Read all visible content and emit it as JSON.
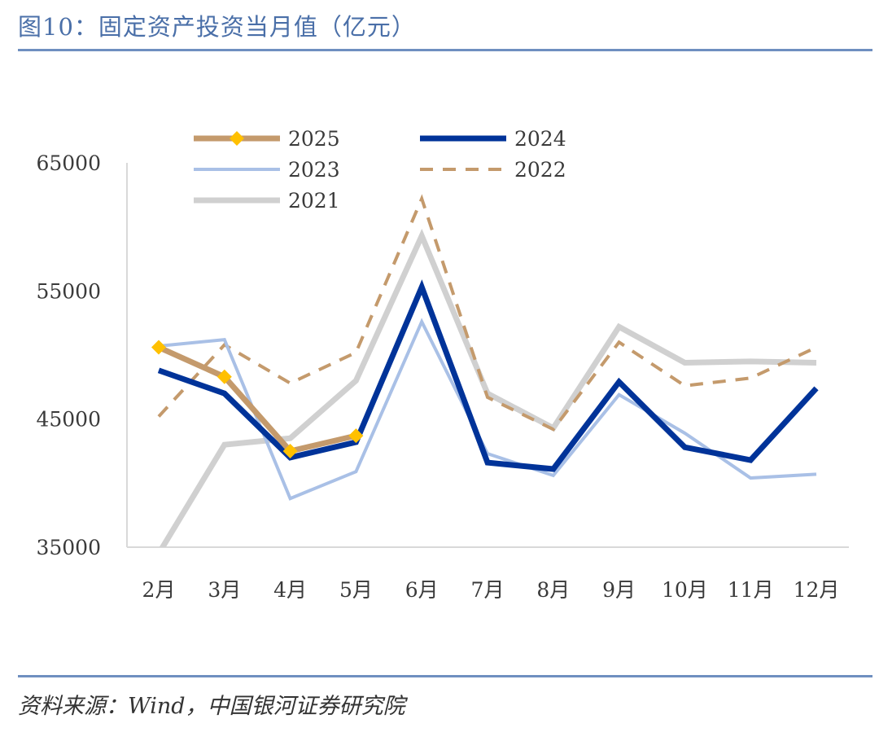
{
  "header": {
    "title": "图10：固定资产投资当月值（亿元）"
  },
  "footer": {
    "source": "资料来源：Wind，中国银河证券研究院"
  },
  "chart_data": {
    "type": "line",
    "title": "图10：固定资产投资当月值（亿元）",
    "xlabel": "",
    "ylabel": "",
    "categories": [
      "2月",
      "3月",
      "4月",
      "5月",
      "6月",
      "7月",
      "8月",
      "9月",
      "10月",
      "11月",
      "12月"
    ],
    "ylim": [
      35000,
      65000
    ],
    "yticks": [
      "35000",
      "45000",
      "55000",
      "65000"
    ],
    "grid": false,
    "legend_position": "top",
    "series": [
      {
        "name": "2025",
        "color": "#c49a6c",
        "style": "solid",
        "marker": "diamond",
        "marker_color": "#ffc000",
        "values": [
          50600,
          48300,
          42500,
          43700,
          null,
          null,
          null,
          null,
          null,
          null,
          null
        ]
      },
      {
        "name": "2024",
        "color": "#003399",
        "style": "solid",
        "values": [
          48800,
          47000,
          42000,
          43200,
          55300,
          41600,
          41100,
          47900,
          42800,
          41800,
          47400
        ]
      },
      {
        "name": "2023",
        "color": "#a9c0e6",
        "style": "solid",
        "values": [
          50700,
          51200,
          38800,
          40900,
          52600,
          42300,
          40600,
          46900,
          43900,
          40400,
          40700
        ]
      },
      {
        "name": "2022",
        "color": "#c49a6c",
        "style": "dashed",
        "values": [
          45200,
          50800,
          47800,
          50200,
          62200,
          46700,
          44200,
          51000,
          47600,
          48200,
          50600
        ]
      },
      {
        "name": "2021",
        "color": "#d0d0d0",
        "style": "solid",
        "values": [
          34500,
          43000,
          43500,
          48000,
          59300,
          47000,
          44300,
          52200,
          49400,
          49500,
          49400
        ]
      }
    ]
  }
}
